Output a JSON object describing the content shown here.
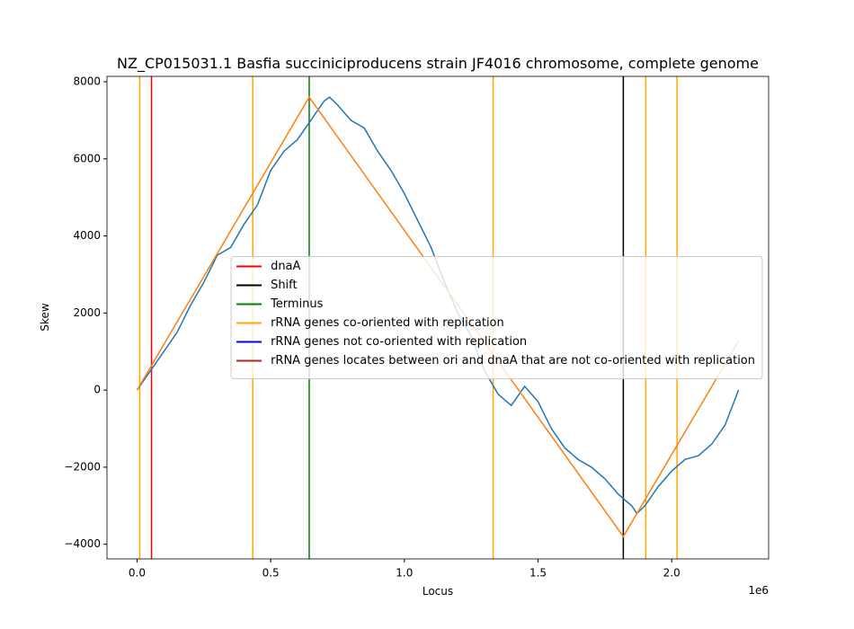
{
  "chart_data": {
    "type": "line",
    "title": "NZ_CP015031.1 Basfia succiniciproducens strain JF4016 chromosome, complete genome",
    "xlabel": "Locus",
    "ylabel": "Skew",
    "x_offset_label": "1e6",
    "xlim": [
      -112500,
      2362500
    ],
    "ylim": [
      -4380,
      8140
    ],
    "xticks": [
      {
        "value": 0,
        "label": "0.0"
      },
      {
        "value": 500000,
        "label": "0.5"
      },
      {
        "value": 1000000,
        "label": "1.0"
      },
      {
        "value": 1500000,
        "label": "1.5"
      },
      {
        "value": 2000000,
        "label": "2.0"
      }
    ],
    "yticks": [
      {
        "value": -4000,
        "label": "−4000"
      },
      {
        "value": -2000,
        "label": "−2000"
      },
      0,
      2000,
      4000,
      6000,
      8000
    ],
    "legend": "center right",
    "series": [
      {
        "color": "#1f77b4",
        "x": [
          0,
          20000,
          50000,
          100000,
          150000,
          200000,
          250000,
          300000,
          350000,
          400000,
          450000,
          500000,
          550000,
          600000,
          650000,
          700000,
          720000,
          750000,
          800000,
          850000,
          900000,
          950000,
          1000000,
          1050000,
          1100000,
          1150000,
          1200000,
          1250000,
          1300000,
          1350000,
          1400000,
          1450000,
          1500000,
          1550000,
          1600000,
          1650000,
          1700000,
          1750000,
          1800000,
          1850000,
          1870000,
          1900000,
          1950000,
          2000000,
          2050000,
          2100000,
          2150000,
          2200000,
          2250000
        ],
        "values": [
          0,
          200,
          500,
          1000,
          1500,
          2200,
          2800,
          3500,
          3700,
          4300,
          4800,
          5700,
          6200,
          6500,
          7000,
          7500,
          7600,
          7400,
          7000,
          6800,
          6200,
          5700,
          5100,
          4400,
          3700,
          2800,
          2000,
          1400,
          500,
          -100,
          -400,
          100,
          -300,
          -1000,
          -1500,
          -1800,
          -2000,
          -2300,
          -2700,
          -3000,
          -3200,
          -3000,
          -2500,
          -2100,
          -1800,
          -1700,
          -1400,
          -900,
          0
        ]
      },
      {
        "color": "#ff7f0e",
        "x": [
          0,
          644000,
          1819000,
          2250000
        ],
        "values": [
          0,
          7600,
          -3800,
          1270
        ]
      }
    ],
    "vlines": [
      {
        "name": "dnaA",
        "color": "#ff0000",
        "x": [
          54000
        ]
      },
      {
        "name": "Shift",
        "color": "#000000",
        "x": [
          1819000
        ]
      },
      {
        "name": "Terminus",
        "color": "#008000",
        "x": [
          644000
        ]
      },
      {
        "name": "rRNA genes co-oriented with replication",
        "color": "#ffa500",
        "x": [
          10000,
          433000,
          1332000,
          1903000,
          2020000
        ]
      },
      {
        "name": "rRNA genes not co-oriented with replication",
        "color": "#0000ff",
        "x": []
      },
      {
        "name": "rRNA genes locates between ori and dnaA that are not co-oriented with replication",
        "color": "#a52a2a",
        "x": []
      }
    ]
  }
}
